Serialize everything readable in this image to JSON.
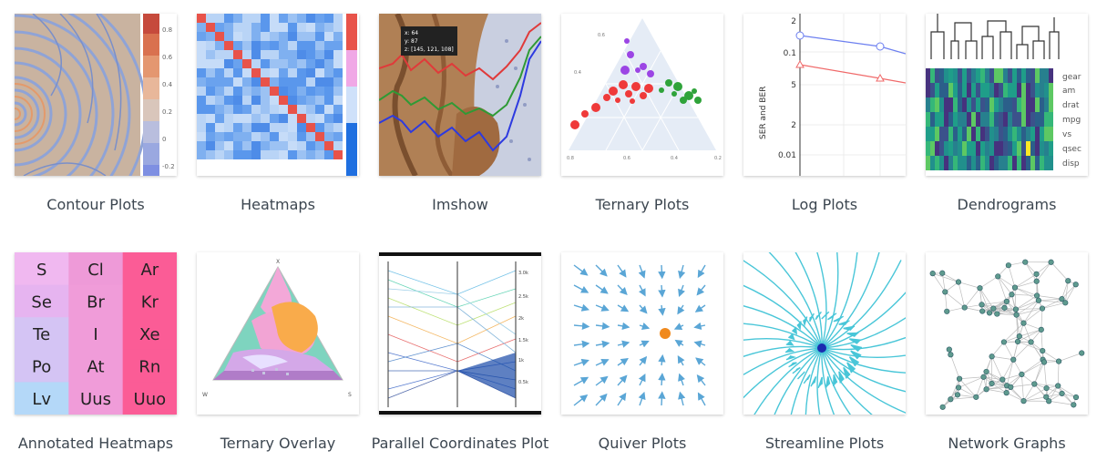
{
  "gallery": {
    "items": [
      {
        "label": "Contour Plots",
        "thumb": "contour"
      },
      {
        "label": "Heatmaps",
        "thumb": "heatmap"
      },
      {
        "label": "Imshow",
        "thumb": "imshow"
      },
      {
        "label": "Ternary Plots",
        "thumb": "ternary"
      },
      {
        "label": "Log Plots",
        "thumb": "log"
      },
      {
        "label": "Dendrograms",
        "thumb": "dendrogram"
      },
      {
        "label": "Annotated Heatmaps",
        "thumb": "annotated-heatmap"
      },
      {
        "label": "Ternary Overlay",
        "thumb": "ternary-overlay"
      },
      {
        "label": "Parallel Coordinates Plot",
        "thumb": "parallel-coordinates"
      },
      {
        "label": "Quiver Plots",
        "thumb": "quiver"
      },
      {
        "label": "Streamline Plots",
        "thumb": "streamline"
      },
      {
        "label": "Network Graphs",
        "thumb": "network"
      }
    ]
  },
  "thumb_text": {
    "contour_colorbar_ticks": [
      "0.8",
      "0.6",
      "0.4",
      "0.2",
      "0",
      "-0.2"
    ],
    "imshow_tooltip": [
      "x: 64",
      "y: 87",
      "z: [145, 121, 108]"
    ],
    "ternary_ticks": [
      "0.6",
      "0.4",
      "0.8",
      "0.6",
      "0.4",
      "0.2"
    ],
    "log_ylabel": "SER and BER",
    "log_ticks": [
      "2",
      "0.1",
      "5",
      "2",
      "0.01"
    ],
    "dendrogram_labels": [
      "gear",
      "am",
      "drat",
      "mpg",
      "vs",
      "qsec",
      "disp"
    ],
    "annotated_cells": [
      [
        "S",
        "Cl",
        "Ar"
      ],
      [
        "Se",
        "Br",
        "Kr"
      ],
      [
        "Te",
        "I",
        "Xe"
      ],
      [
        "Po",
        "At",
        "Rn"
      ],
      [
        "Lv",
        "Uus",
        "Uuo"
      ]
    ],
    "annotated_colors": [
      [
        "#f0b8f0",
        "#ee9ad8",
        "#fb5c96"
      ],
      [
        "#e6b4f0",
        "#f09cd9",
        "#fb5c96"
      ],
      [
        "#d4c4f4",
        "#f09cd9",
        "#fb5c96"
      ],
      [
        "#d4c4f4",
        "#f09cd9",
        "#fb5c96"
      ],
      [
        "#b4d8f8",
        "#f09cd9",
        "#fb5c96"
      ]
    ],
    "ternary_overlay_axes": [
      "X",
      "W",
      "S"
    ],
    "parallel_ticks": [
      "3.0k",
      "2.5k",
      "2k",
      "1.5k",
      "1k",
      "0.5k"
    ]
  },
  "colors": {
    "contour_bg": "#c9b3a0",
    "heatmap_base": "#7fb0f0",
    "heatmap_diag": "#e8534a",
    "quiver_arrow": "#5aa6d6",
    "quiver_center": "#f08a1e",
    "streamline": "#49c6d8",
    "streamline_center": "#1a2bb0",
    "network_node": "#5e9a8e"
  }
}
